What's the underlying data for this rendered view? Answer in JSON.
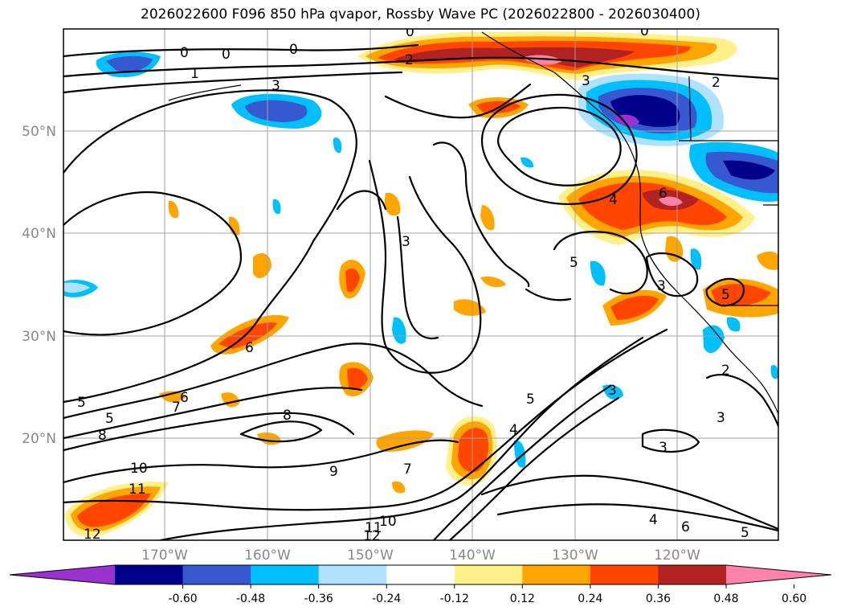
{
  "title": "2026022600 F096 850 hPa qvapor, Rossby Wave PC (2026022800 - 2026030400)",
  "axes": {
    "lat_labels": [
      "50°N",
      "40°N",
      "30°N",
      "20°N"
    ],
    "lon_labels": [
      "170°W",
      "160°W",
      "150°W",
      "140°W",
      "130°W",
      "120°W"
    ]
  },
  "contour_labels": [
    "0",
    "0",
    "0",
    "0",
    "1",
    "3",
    "2",
    "2",
    "0",
    "3",
    "3",
    "5",
    "4",
    "6",
    "6",
    "5",
    "7",
    "8",
    "5",
    "8",
    "10",
    "9",
    "7",
    "11",
    "12",
    "10",
    "12",
    "11",
    "5",
    "4",
    "3",
    "3",
    "3",
    "2",
    "3",
    "5",
    "4",
    "6",
    "5",
    "6"
  ],
  "colorbar": {
    "ticks": [
      "-0.60",
      "-0.48",
      "-0.36",
      "-0.24",
      "-0.12",
      "0.12",
      "0.24",
      "0.36",
      "0.48",
      "0.60"
    ],
    "colors": [
      "#9a32cd",
      "#00008b",
      "#3658d0",
      "#00bfff",
      "#b0e2ff",
      "#ffffff",
      "#fff08a",
      "#ffa500",
      "#ff4500",
      "#b22222",
      "#ff82ab"
    ]
  }
}
